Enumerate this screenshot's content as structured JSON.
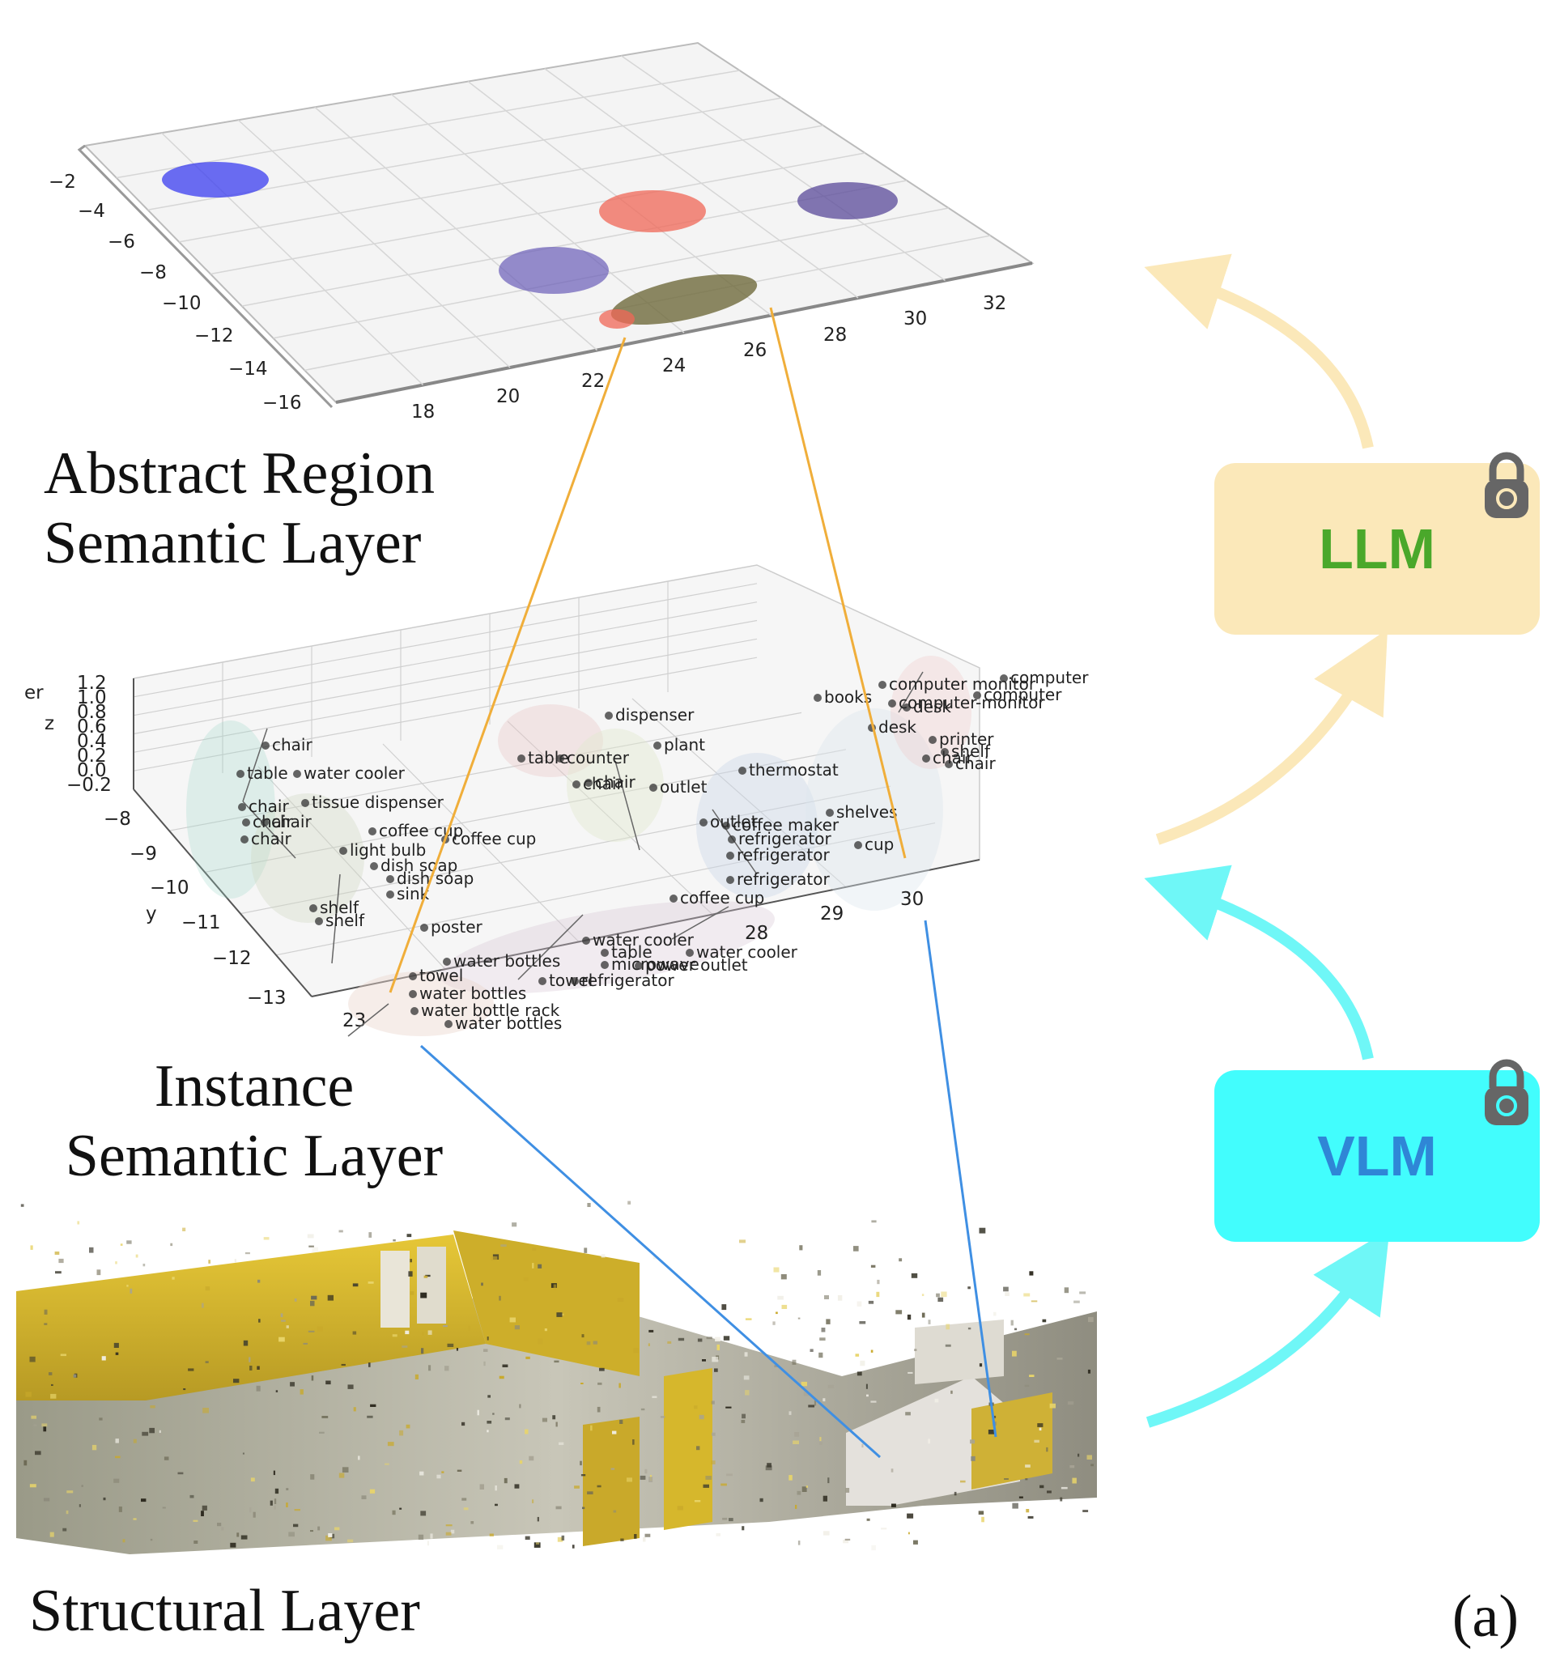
{
  "layers": {
    "abstract": {
      "title": "Abstract Region\nSemantic Layer"
    },
    "instance": {
      "title": "Instance\nSemantic Layer"
    },
    "structural": {
      "title": "Structural Layer"
    }
  },
  "models": {
    "llm": {
      "label": "LLM",
      "box_color": "#fbe8b9",
      "text_color": "#4aa82b",
      "icon": "lock-icon"
    },
    "vlm": {
      "label": "VLM",
      "box_color": "#42fdfd",
      "text_color": "#2f86d6",
      "icon": "lock-icon"
    }
  },
  "panel_tag": "(a)",
  "colors": {
    "llm_arrow": "#fbe8b9",
    "vlm_arrow": "#6ff7f7",
    "orange_link": "#f0ae3a",
    "blue_link": "#3f8fe3"
  },
  "abstract_plot": {
    "x_ticks": [
      "18",
      "20",
      "22",
      "24",
      "26",
      "28",
      "30",
      "32"
    ],
    "y_ticks": [
      "−2",
      "−4",
      "−6",
      "−8",
      "−10",
      "−12",
      "−14",
      "−16"
    ]
  },
  "instance_plot": {
    "axis_labels": {
      "z": "z",
      "y": "y",
      "edge": "er"
    },
    "z_ticks": [
      "1.2",
      "1.0",
      "0.8",
      "0.6",
      "0.4",
      "0.2",
      "0.0",
      "−0.2"
    ],
    "y_ticks": [
      "−8",
      "−9",
      "−10",
      "−11",
      "−12",
      "−13"
    ],
    "x_ticks": [
      "23",
      "28",
      "29",
      "30"
    ],
    "object_labels": [
      "chair",
      "table",
      "water cooler",
      "chair",
      "tissue dispenser",
      "chair",
      "chair",
      "chair",
      "coffee cup",
      "coffee cup",
      "light bulb",
      "dish soap",
      "dish soap",
      "sink",
      "shelf",
      "shelf",
      "poster",
      "water bottles",
      "towel",
      "water bottles",
      "water bottle rack",
      "water bottles",
      "towel",
      "refrigerator",
      "table",
      "microwave",
      "water cooler",
      "power outlet",
      "water cooler",
      "coffee cup",
      "table",
      "counter",
      "chair",
      "chair",
      "outlet",
      "plant",
      "dispenser",
      "thermostat",
      "outlet",
      "coffee maker",
      "refrigerator",
      "refrigerator",
      "refrigerator",
      "shelves",
      "cup",
      "books",
      "computer monitor",
      "computer",
      "desk",
      "desk",
      "chair",
      "chair",
      "printer",
      "shelf",
      "computer-monitor",
      "computer"
    ]
  }
}
